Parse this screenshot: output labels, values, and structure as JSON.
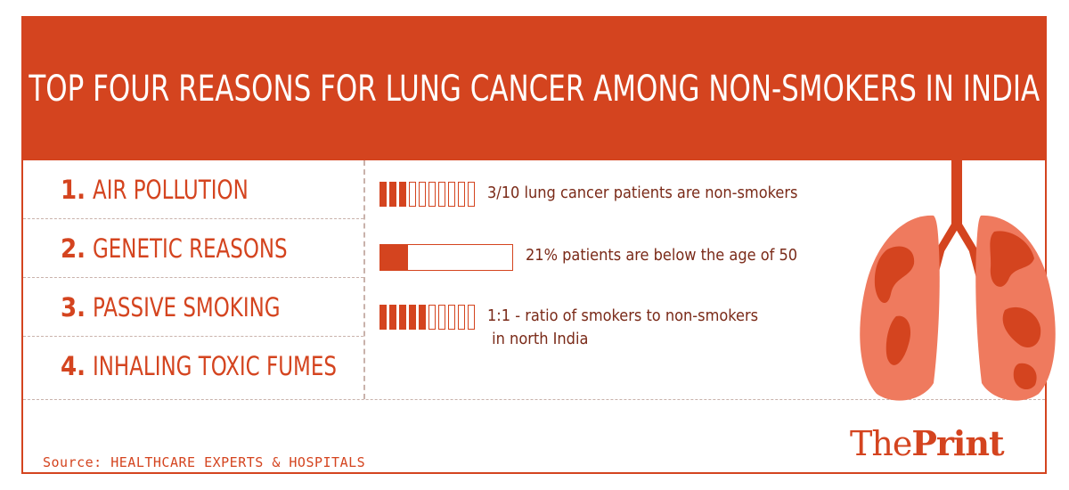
{
  "title": "TOP FOUR REASONS FOR LUNG CANCER AMONG NON-SMOKERS IN INDIA",
  "reasons": [
    {
      "num": "1.",
      "label": "AIR POLLUTION"
    },
    {
      "num": "2.",
      "label": "GENETIC REASONS"
    },
    {
      "num": "3.",
      "label": "PASSIVE SMOKING"
    },
    {
      "num": "4.",
      "label": "INHALING TOXIC FUMES"
    }
  ],
  "stats": [
    {
      "text": "3/10 lung cancer patients are non-smokers",
      "filled": 3,
      "total": 10
    },
    {
      "text": "21% patients are below the age of 50",
      "percent": 21
    },
    {
      "text": "1:1 - ratio of smokers to non-smokers",
      "text2": " in north India",
      "filled": 5,
      "total": 10
    }
  ],
  "source": "Source: HEALTHCARE EXPERTS & HOSPITALS",
  "logo": {
    "part1": "The",
    "part2": "Print"
  },
  "colors": {
    "accent": "#d4441f",
    "lung_fill": "#ef7a5e",
    "lung_dark": "#d4441f",
    "divider": "#c9b2ab"
  },
  "chart_data": {
    "type": "bar",
    "title": "TOP FOUR REASONS FOR LUNG CANCER AMONG NON-SMOKERS IN INDIA",
    "categories": [
      "3/10 lung cancer patients are non-smokers",
      "21% patients are below the age of 50",
      "1:1 - ratio of smokers to non-smokers in north India"
    ],
    "values": [
      30,
      21,
      50
    ]
  }
}
